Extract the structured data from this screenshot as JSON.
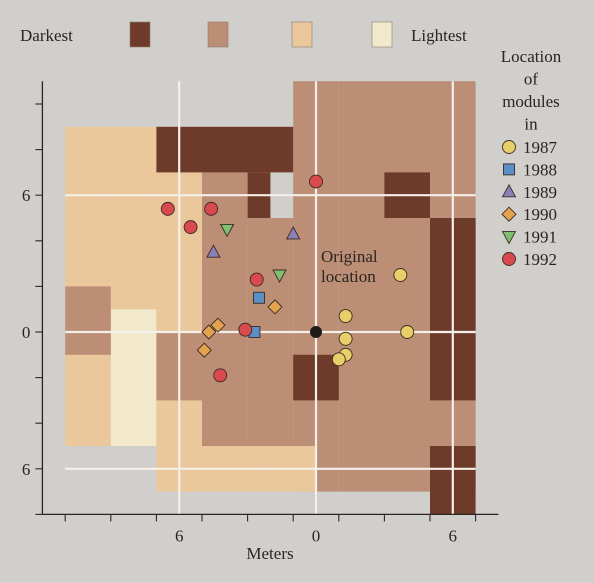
{
  "chart_data": {
    "type": "heatmap",
    "title": "",
    "xlabel": "Meters",
    "ylabel": "",
    "x_ticks": [
      {
        "value": -6,
        "label": "6"
      },
      {
        "value": 0,
        "label": "0"
      },
      {
        "value": 6,
        "label": "6"
      }
    ],
    "y_ticks": [
      {
        "value": 6,
        "label": "6"
      },
      {
        "value": 0,
        "label": "0"
      },
      {
        "value": -6,
        "label": "6"
      }
    ],
    "x_range": [
      -12,
      8
    ],
    "y_range": [
      -8,
      11
    ],
    "grid": "every 6 m",
    "shade_legend": {
      "low_label": "Darkest",
      "high_label": "Lightest",
      "shades": [
        {
          "level": 1,
          "color": "#6e3b2a"
        },
        {
          "level": 2,
          "color": "#bc8e76"
        },
        {
          "level": 3,
          "color": "#ebc89c"
        },
        {
          "level": 4,
          "color": "#f2e9cc"
        }
      ]
    },
    "cells": [
      {
        "x": [
          -11,
          -9
        ],
        "y": [
          -5,
          9
        ],
        "level": 3
      },
      {
        "x": [
          -9,
          -7
        ],
        "y": [
          -5,
          1
        ],
        "level": 4
      },
      {
        "x": [
          -9,
          -7
        ],
        "y": [
          1,
          3
        ],
        "level": 3
      },
      {
        "x": [
          -9,
          -7
        ],
        "y": [
          3,
          9
        ],
        "level": 3
      },
      {
        "x": [
          -7,
          -5
        ],
        "y": [
          3,
          9
        ],
        "level": 3
      },
      {
        "x": [
          -7,
          -5
        ],
        "y": [
          -7,
          3
        ],
        "level": 3
      },
      {
        "x": [
          -11,
          -9
        ],
        "y": [
          -1,
          2
        ],
        "level": 2
      },
      {
        "x": [
          -7,
          -5
        ],
        "y": [
          -3,
          0
        ],
        "level": 2
      },
      {
        "x": [
          -5,
          -3
        ],
        "y": [
          -5,
          7
        ],
        "level": 2
      },
      {
        "x": [
          -3,
          -1
        ],
        "y": [
          -5,
          5
        ],
        "level": 2
      },
      {
        "x": [
          -1,
          1
        ],
        "y": [
          -7,
          11
        ],
        "level": 2
      },
      {
        "x": [
          1,
          7
        ],
        "y": [
          -7,
          11
        ],
        "level": 2
      },
      {
        "x": [
          -5,
          -2
        ],
        "y": [
          -7,
          -5
        ],
        "level": 3
      },
      {
        "x": [
          -2,
          0
        ],
        "y": [
          -7,
          -5
        ],
        "level": 3
      },
      {
        "x": [
          -7,
          -1
        ],
        "y": [
          7,
          9
        ],
        "level": 1
      },
      {
        "x": [
          -3,
          -2
        ],
        "y": [
          5,
          7
        ],
        "level": 1
      },
      {
        "x": [
          3,
          5
        ],
        "y": [
          5,
          7
        ],
        "level": 1
      },
      {
        "x": [
          5,
          7
        ],
        "y": [
          -3,
          5
        ],
        "level": 1
      },
      {
        "x": [
          -1,
          1
        ],
        "y": [
          -3,
          -1
        ],
        "level": 1
      },
      {
        "x": [
          5,
          7
        ],
        "y": [
          -8,
          -5
        ],
        "level": 1
      }
    ],
    "legend_title": [
      "Location",
      "of",
      "modules",
      "in"
    ],
    "series": [
      {
        "name": "1987",
        "marker": "circle",
        "color": "#e9cf6a",
        "points": [
          [
            3.7,
            2.5
          ],
          [
            4,
            0
          ],
          [
            1.3,
            0.7
          ],
          [
            1.3,
            -0.3
          ],
          [
            1.3,
            -1
          ],
          [
            1,
            -1.2
          ]
        ]
      },
      {
        "name": "1988",
        "marker": "square",
        "color": "#5b8fc9",
        "points": [
          [
            -2.5,
            1.5
          ],
          [
            -2.7,
            0
          ]
        ]
      },
      {
        "name": "1989",
        "marker": "triangle-up",
        "color": "#8a7fb6",
        "points": [
          [
            -1,
            4.3
          ],
          [
            -4.5,
            3.5
          ]
        ]
      },
      {
        "name": "1990",
        "marker": "diamond",
        "color": "#e3a34e",
        "points": [
          [
            -1.8,
            1.1
          ],
          [
            -4.3,
            0.3
          ],
          [
            -4.7,
            0
          ],
          [
            -4.9,
            -0.8
          ]
        ]
      },
      {
        "name": "1991",
        "marker": "triangle-down",
        "color": "#7fbf6f",
        "points": [
          [
            -3.9,
            4.5
          ],
          [
            -1.6,
            2.5
          ]
        ]
      },
      {
        "name": "1992",
        "marker": "circle",
        "color": "#d94a4f",
        "points": [
          [
            -6.5,
            5.4
          ],
          [
            -4.6,
            5.4
          ],
          [
            -5.5,
            4.6
          ],
          [
            0,
            6.6
          ],
          [
            -2.6,
            2.3
          ],
          [
            -3.1,
            0.1
          ],
          [
            -4.2,
            -1.9
          ]
        ]
      }
    ],
    "origin": {
      "point": [
        0,
        0
      ],
      "label": [
        "Original",
        "location"
      ],
      "color": "#1e1a17"
    }
  }
}
